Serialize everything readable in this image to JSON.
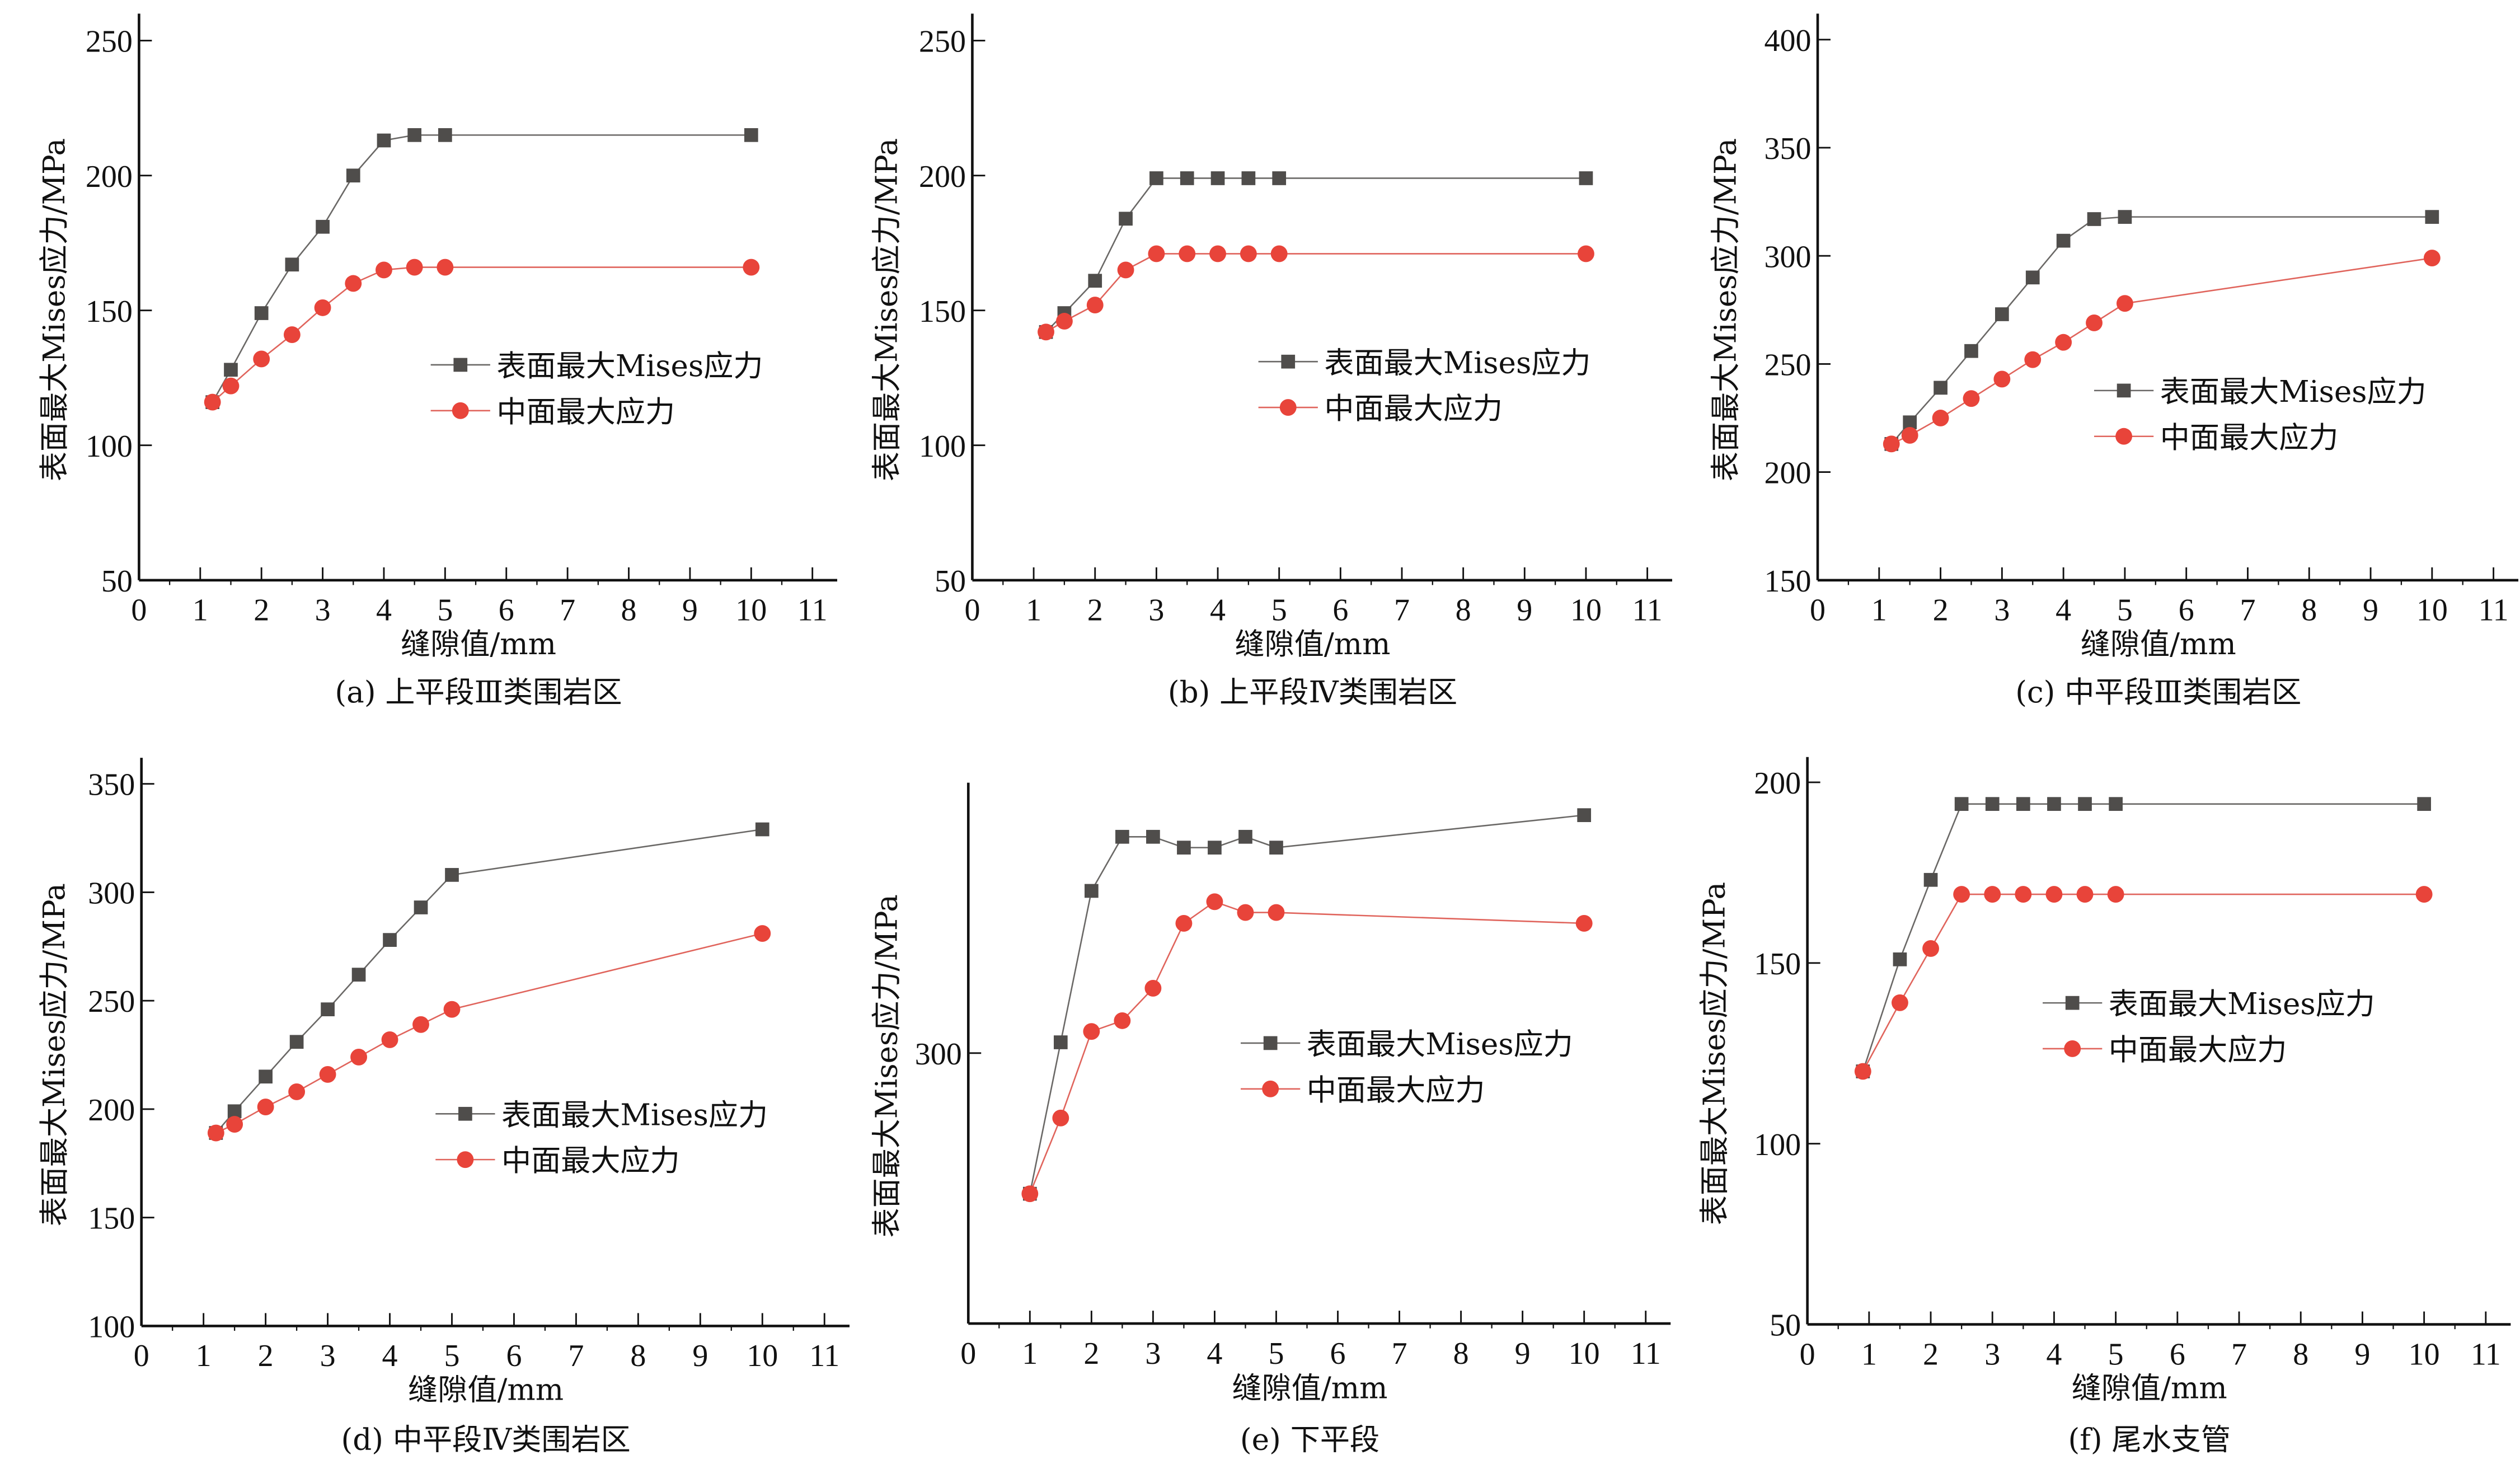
{
  "colors": {
    "surface_series": "#4f4d4b",
    "mid_series": "#e8443a",
    "surface_line": "#6a6866",
    "mid_line": "#e0645c",
    "axis": "#111111",
    "background": "#ffffff"
  },
  "chart_data": [
    {
      "id": "a",
      "type": "line",
      "subtitle": "(a) 上平段Ⅲ类围岩区",
      "xlabel": "缝隙值/mm",
      "ylabel": "表面最大Mises应力/MPa",
      "xlim": [
        0,
        11.3
      ],
      "ylim": [
        50,
        260
      ],
      "xticks": [
        0,
        1,
        2,
        3,
        4,
        5,
        6,
        7,
        8,
        9,
        10,
        11
      ],
      "xtick_labels": [
        "0",
        "1",
        "2",
        "3",
        "4",
        "5",
        "6",
        "7",
        "8",
        "9",
        "10",
        "11"
      ],
      "yticks": [
        50,
        100,
        150,
        200,
        250
      ],
      "ytick_labels": [
        "50",
        "100",
        "150",
        "200",
        "250"
      ],
      "grid": false,
      "legend_position": "center-right",
      "series": [
        {
          "name": "表面最大Mises应力",
          "marker": "square",
          "x": [
            1.2,
            1.5,
            2,
            2.5,
            3,
            3.5,
            4,
            4.5,
            5,
            10
          ],
          "y": [
            116,
            128,
            149,
            167,
            181,
            200,
            213,
            215,
            215,
            215
          ]
        },
        {
          "name": "中面最大应力",
          "marker": "circle",
          "x": [
            1.2,
            1.5,
            2,
            2.5,
            3,
            3.5,
            4,
            4.5,
            5,
            10
          ],
          "y": [
            116,
            122,
            132,
            141,
            151,
            160,
            165,
            166,
            166,
            166
          ]
        }
      ]
    },
    {
      "id": "b",
      "type": "line",
      "subtitle": "(b) 上平段Ⅳ类围岩区",
      "xlabel": "缝隙值/mm",
      "ylabel": "表面最大Mises应力/MPa",
      "xlim": [
        0,
        11.3
      ],
      "ylim": [
        50,
        260
      ],
      "xticks": [
        0,
        1,
        2,
        3,
        4,
        5,
        6,
        7,
        8,
        9,
        10,
        11
      ],
      "xtick_labels": [
        "0",
        "1",
        "2",
        "3",
        "4",
        "5",
        "6",
        "7",
        "8",
        "9",
        "10",
        "11"
      ],
      "yticks": [
        50,
        100,
        150,
        200,
        250
      ],
      "ytick_labels": [
        "50",
        "100",
        "150",
        "200",
        "250"
      ],
      "grid": false,
      "legend_position": "center-right",
      "series": [
        {
          "name": "表面最大Mises应力",
          "marker": "square",
          "x": [
            1.2,
            1.5,
            2,
            2.5,
            3,
            3.5,
            4,
            4.5,
            5,
            10
          ],
          "y": [
            142,
            149,
            161,
            184,
            199,
            199,
            199,
            199,
            199,
            199
          ]
        },
        {
          "name": "中面最大应力",
          "marker": "circle",
          "x": [
            1.2,
            1.5,
            2,
            2.5,
            3,
            3.5,
            4,
            4.5,
            5,
            10
          ],
          "y": [
            142,
            146,
            152,
            165,
            171,
            171,
            171,
            171,
            171,
            171
          ]
        }
      ]
    },
    {
      "id": "c",
      "type": "line",
      "subtitle": "(c)  中平段Ⅲ类围岩区",
      "xlabel": "缝隙值/mm",
      "ylabel": "表面最大Mises应力/MPa",
      "xlim": [
        0,
        11.3
      ],
      "ylim": [
        150,
        412
      ],
      "xticks": [
        0,
        1,
        2,
        3,
        4,
        5,
        6,
        7,
        8,
        9,
        10,
        11
      ],
      "xtick_labels": [
        "0",
        "1",
        "2",
        "3",
        "4",
        "5",
        "6",
        "7",
        "8",
        "9",
        "10",
        "11"
      ],
      "yticks": [
        150,
        200,
        250,
        300,
        350,
        400
      ],
      "ytick_labels": [
        "150",
        "200",
        "250",
        "300",
        "350",
        "400"
      ],
      "grid": false,
      "legend_position": "lower-right",
      "series": [
        {
          "name": "表面最大Mises应力",
          "marker": "square",
          "x": [
            1.2,
            1.5,
            2,
            2.5,
            3,
            3.5,
            4,
            4.5,
            5,
            10
          ],
          "y": [
            213,
            223,
            239,
            256,
            273,
            290,
            307,
            317,
            318,
            318
          ]
        },
        {
          "name": "中面最大应力",
          "marker": "circle",
          "x": [
            1.2,
            1.5,
            2,
            2.5,
            3,
            3.5,
            4,
            4.5,
            5,
            10
          ],
          "y": [
            213,
            217,
            225,
            234,
            243,
            252,
            260,
            269,
            278,
            299
          ]
        }
      ]
    },
    {
      "id": "d",
      "type": "line",
      "subtitle": "(d) 中平段Ⅳ类围岩区",
      "xlabel": "缝隙值/mm",
      "ylabel": "表面最大Mises应力/MPa",
      "xlim": [
        0,
        11.3
      ],
      "ylim": [
        100,
        362
      ],
      "xticks": [
        0,
        1,
        2,
        3,
        4,
        5,
        6,
        7,
        8,
        9,
        10,
        11
      ],
      "xtick_labels": [
        "0",
        "1",
        "2",
        "3",
        "4",
        "5",
        "6",
        "7",
        "8",
        "9",
        "10",
        "11"
      ],
      "yticks": [
        100,
        150,
        200,
        250,
        300,
        350
      ],
      "ytick_labels": [
        "100",
        "150",
        "200",
        "250",
        "300",
        "350"
      ],
      "grid": false,
      "legend_position": "lower-right",
      "series": [
        {
          "name": "表面最大Mises应力",
          "marker": "square",
          "x": [
            1.2,
            1.5,
            2,
            2.5,
            3,
            3.5,
            4,
            4.5,
            5,
            10
          ],
          "y": [
            189,
            199,
            215,
            231,
            246,
            262,
            278,
            293,
            308,
            329
          ]
        },
        {
          "name": "中面最大应力",
          "marker": "circle",
          "x": [
            1.2,
            1.5,
            2,
            2.5,
            3,
            3.5,
            4,
            4.5,
            5,
            10
          ],
          "y": [
            189,
            193,
            201,
            208,
            216,
            224,
            232,
            239,
            246,
            281
          ]
        }
      ]
    },
    {
      "id": "e",
      "type": "line",
      "subtitle": "(e) 下平段",
      "xlabel": "缝隙值/mm",
      "ylabel": "表面最大Mises应力/MPa",
      "xlim": [
        0,
        11.3
      ],
      "ylim": [
        250,
        350
      ],
      "xticks": [
        0,
        1,
        2,
        3,
        4,
        5,
        6,
        7,
        8,
        9,
        10,
        11
      ],
      "xtick_labels": [
        "0",
        "1",
        "2",
        "3",
        "4",
        "5",
        "6",
        "7",
        "8",
        "9",
        "10",
        "11"
      ],
      "yticks": [
        300
      ],
      "ytick_labels": [
        "300"
      ],
      "grid": false,
      "legend_position": "center-right",
      "series": [
        {
          "name": "表面最大Mises应力",
          "marker": "square",
          "x": [
            1,
            1.5,
            2,
            2.5,
            3,
            3.5,
            4,
            4.5,
            5,
            10
          ],
          "y": [
            274,
            302,
            330,
            340,
            340,
            338,
            338,
            340,
            338,
            344
          ]
        },
        {
          "name": "中面最大应力",
          "marker": "circle",
          "x": [
            1,
            1.5,
            2,
            2.5,
            3,
            3.5,
            4,
            4.5,
            5,
            10
          ],
          "y": [
            274,
            288,
            304,
            306,
            312,
            324,
            328,
            326,
            326,
            324
          ]
        }
      ]
    },
    {
      "id": "f",
      "type": "line",
      "subtitle": "(f) 尾水支管",
      "xlabel": "缝隙值/mm",
      "ylabel": "表面最大Mises应力/MPa",
      "xlim": [
        0,
        11.3
      ],
      "ylim": [
        50,
        207
      ],
      "xticks": [
        0,
        1,
        2,
        3,
        4,
        5,
        6,
        7,
        8,
        9,
        10,
        11
      ],
      "xtick_labels": [
        "0",
        "1",
        "2",
        "3",
        "4",
        "5",
        "6",
        "7",
        "8",
        "9",
        "10",
        "11"
      ],
      "yticks": [
        50,
        100,
        150,
        200
      ],
      "ytick_labels": [
        "50",
        "100",
        "150",
        "200"
      ],
      "grid": false,
      "legend_position": "center-right",
      "series": [
        {
          "name": "表面最大Mises应力",
          "marker": "square",
          "x": [
            0.9,
            1.5,
            2,
            2.5,
            3,
            3.5,
            4,
            4.5,
            5,
            10
          ],
          "y": [
            120,
            151,
            173,
            194,
            194,
            194,
            194,
            194,
            194,
            194
          ]
        },
        {
          "name": "中面最大应力",
          "marker": "circle",
          "x": [
            0.9,
            1.5,
            2,
            2.5,
            3,
            3.5,
            4,
            4.5,
            5,
            10
          ],
          "y": [
            120,
            139,
            154,
            169,
            169,
            169,
            169,
            169,
            169,
            169
          ]
        }
      ]
    }
  ]
}
